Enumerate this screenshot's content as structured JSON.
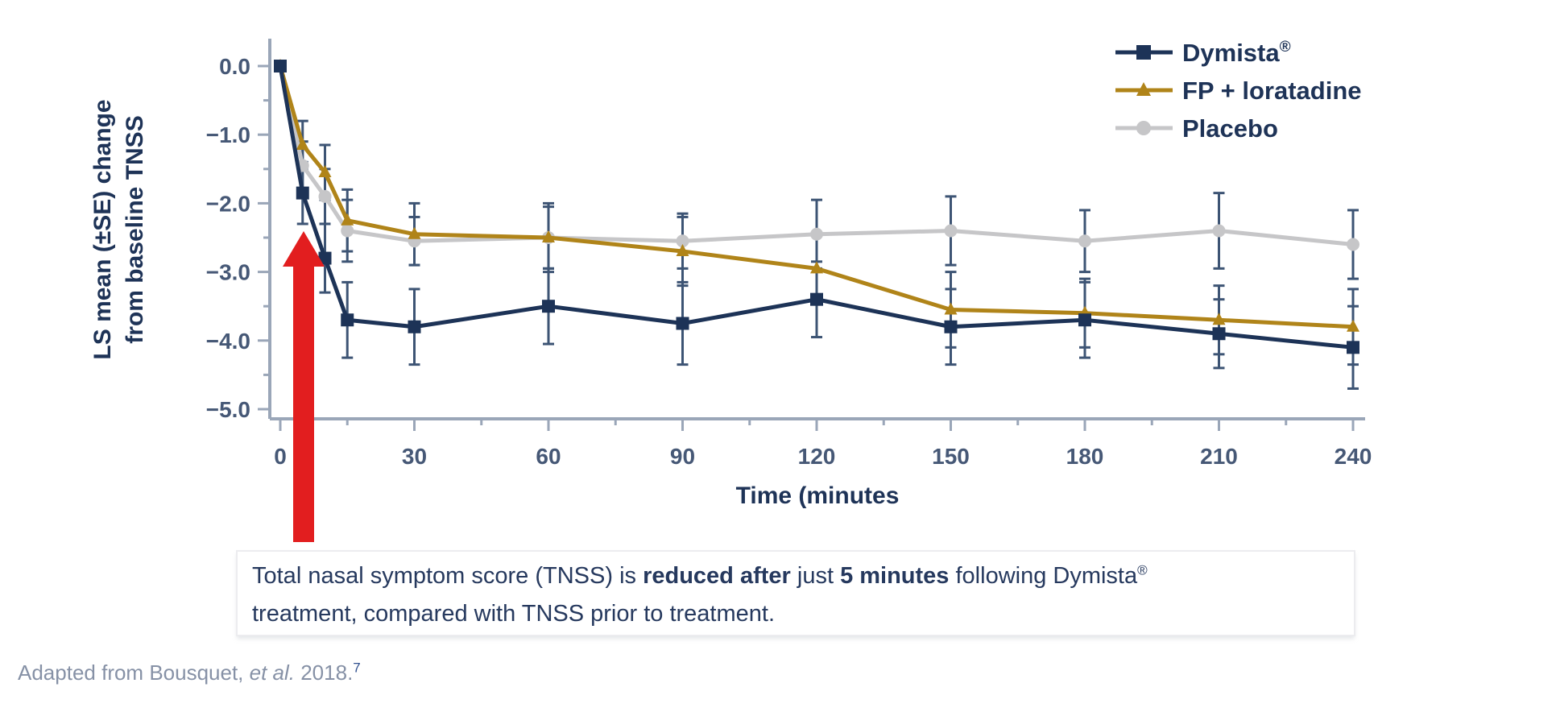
{
  "figure": {
    "annotation": {
      "line1_part1": "Total nasal symptom score (TNSS) is ",
      "line1_bold1": "reduced after",
      "line1_part2": " just ",
      "line1_bold2": "5 minutes",
      "line1_part3": " following Dymista",
      "line1_sup": "®",
      "line2": "treatment, compared with TNSS prior to treatment."
    },
    "caption": {
      "prefix": "Adapted from Bousquet, ",
      "italic": "et al.",
      "suffix": " 2018.",
      "superscript": "7"
    }
  },
  "chart_data": {
    "type": "line",
    "x": [
      0,
      5,
      10,
      15,
      30,
      60,
      90,
      120,
      150,
      180,
      210,
      240
    ],
    "xlabel": "Time (minutes",
    "ylabel_line1": "LS mean (±SE) change",
    "ylabel_line2": "from baseline TNSS",
    "xlim": [
      0,
      240
    ],
    "ylim": [
      -5.0,
      0.0
    ],
    "x_ticks": [
      0,
      30,
      60,
      90,
      120,
      150,
      180,
      210,
      240
    ],
    "x_minor_step": 15,
    "y_ticks": [
      0,
      -1,
      -2,
      -3,
      -4,
      -5
    ],
    "y_tick_labels": [
      "0.0",
      "−1.0",
      "−2.0",
      "−3.0",
      "−4.0",
      "−5.0"
    ],
    "y_minor_step": 0.5,
    "grid": false,
    "legend_position": "top-right",
    "series": [
      {
        "name": "Dymista",
        "name_sup": "®",
        "slug": "dymista",
        "color": "#1d3357",
        "marker": "square",
        "values": [
          0,
          -1.85,
          -2.8,
          -3.7,
          -3.8,
          -3.5,
          -3.75,
          -3.4,
          -3.8,
          -3.7,
          -3.9,
          -4.1
        ],
        "se": [
          0,
          0.45,
          0.5,
          0.55,
          0.55,
          0.55,
          0.6,
          0.55,
          0.55,
          0.55,
          0.5,
          0.6
        ]
      },
      {
        "name": "FP + loratadine",
        "name_sup": "",
        "slug": "fp-loratadine",
        "color": "#b08419",
        "marker": "triangle",
        "values": [
          0,
          -1.15,
          -1.55,
          -2.25,
          -2.45,
          -2.5,
          -2.7,
          -2.95,
          -3.55,
          -3.6,
          -3.7,
          -3.8
        ],
        "se": [
          0,
          0.35,
          0.4,
          0.45,
          0.45,
          0.5,
          0.5,
          0.5,
          0.55,
          0.5,
          0.5,
          0.55
        ]
      },
      {
        "name": "Placebo",
        "name_sup": "",
        "slug": "placebo",
        "color": "#c6c6c8",
        "marker": "circle",
        "values": [
          0,
          -1.45,
          -1.9,
          -2.4,
          -2.55,
          -2.5,
          -2.55,
          -2.45,
          -2.4,
          -2.55,
          -2.4,
          -2.6
        ],
        "se": [
          0,
          0.35,
          0.4,
          0.45,
          0.35,
          0.45,
          0.4,
          0.5,
          0.5,
          0.45,
          0.55,
          0.5
        ]
      }
    ],
    "error_bar_color": "#3d5474",
    "axis_color": "#9aa6b8",
    "tick_label_color": "#465876",
    "text_color": "#1e3357",
    "arrow_color": "#e21e1f"
  }
}
